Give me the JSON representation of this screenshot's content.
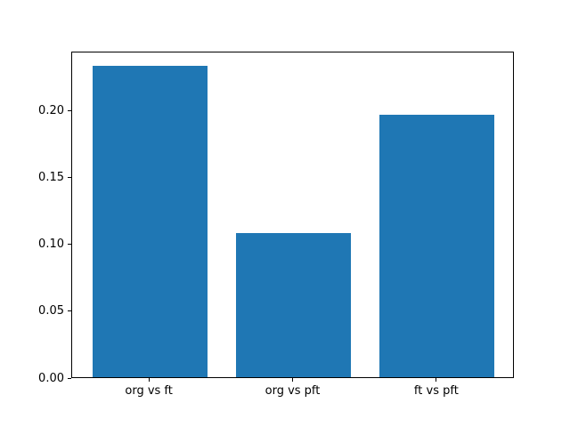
{
  "chart_data": {
    "type": "bar",
    "categories": [
      "org vs ft",
      "org vs pft",
      "ft vs pft"
    ],
    "values": [
      0.233,
      0.108,
      0.196
    ],
    "yticks": {
      "values": [
        0.0,
        0.05,
        0.1,
        0.15,
        0.2
      ],
      "labels": [
        "0.00",
        "0.05",
        "0.10",
        "0.15",
        "0.20"
      ]
    },
    "ylim": [
      0,
      0.244
    ],
    "xlim": [
      -0.54,
      2.54
    ],
    "bar_positions": [
      0,
      1,
      2
    ],
    "bar_width_fraction": 0.8,
    "bar_color": "#1f77b4",
    "axis_color": "#000000",
    "background_color": "#ffffff",
    "grid": false,
    "legend": false
  }
}
